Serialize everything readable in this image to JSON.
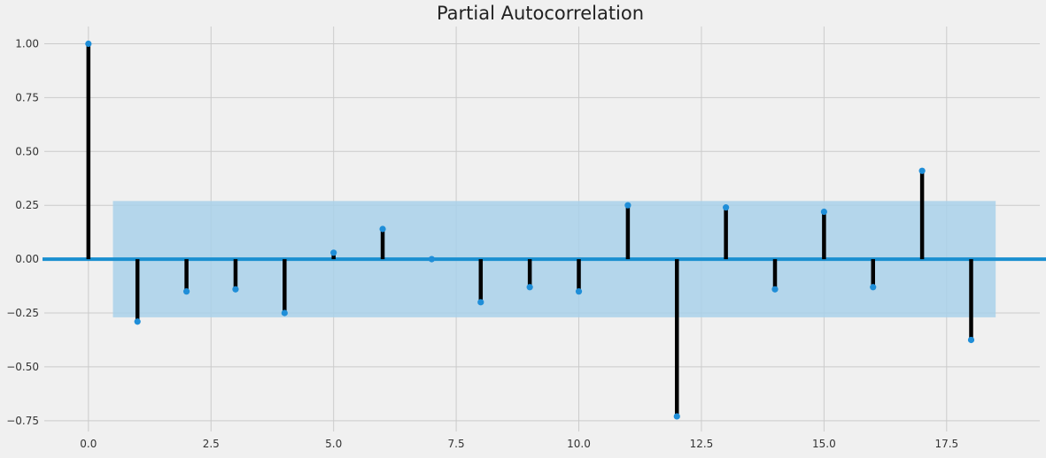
{
  "chart_data": {
    "type": "stem",
    "title": "Partial Autocorrelation",
    "xlabel": "",
    "ylabel": "",
    "xlim": [
      -0.9,
      19.4
    ],
    "ylim": [
      -0.8,
      1.08
    ],
    "x_ticks": [
      0.0,
      2.5,
      5.0,
      7.5,
      10.0,
      12.5,
      15.0,
      17.5
    ],
    "x_tick_labels": [
      "0.0",
      "2.5",
      "5.0",
      "7.5",
      "10.0",
      "12.5",
      "15.0",
      "17.5"
    ],
    "y_ticks": [
      1.0,
      0.75,
      0.5,
      0.25,
      0.0,
      -0.25,
      -0.5,
      -0.75
    ],
    "y_tick_labels": [
      "1.00",
      "0.75",
      "0.50",
      "0.25",
      "0.00",
      "−0.25",
      "−0.50",
      "−0.75"
    ],
    "grid": true,
    "lags": [
      0,
      1,
      2,
      3,
      4,
      5,
      6,
      7,
      8,
      9,
      10,
      11,
      12,
      13,
      14,
      15,
      16,
      17,
      18
    ],
    "values": [
      1.0,
      -0.29,
      -0.15,
      -0.14,
      -0.25,
      0.03,
      0.14,
      0.0,
      -0.2,
      -0.13,
      -0.15,
      0.25,
      -0.73,
      0.24,
      -0.14,
      0.22,
      -0.13,
      0.41,
      -0.375
    ],
    "confidence_band": {
      "x_range": [
        0.5,
        18.5
      ],
      "upper": 0.27,
      "lower": -0.27
    },
    "colors": {
      "background": "#f0f0f0",
      "grid": "#cbcbcb",
      "stem": "#000000",
      "marker": "#1f8ed8",
      "zero_line": "#1a8fd0",
      "band": "#a9d1ea"
    }
  }
}
